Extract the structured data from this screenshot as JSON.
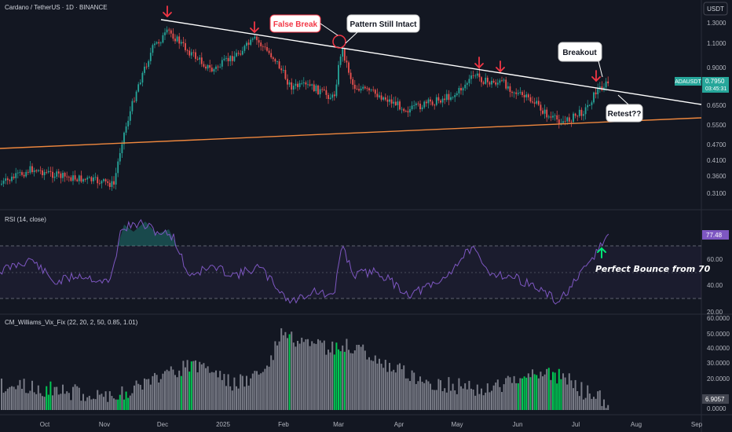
{
  "header": {
    "symbol_title": "Cardano / TetherUS · 1D · BINANCE",
    "currency_button": "USDT"
  },
  "price_pane": {
    "y_ticks": [
      "1.3000",
      "1.1000",
      "0.9000",
      "0.7950",
      "0.6500",
      "0.5500",
      "0.4700",
      "0.4100",
      "0.3600",
      "0.3100"
    ],
    "ticker_label": "ADAUSDT",
    "last_price": "0.7950",
    "countdown": "03:45:31",
    "colors": {
      "up": "#26a69a",
      "down": "#ef5350",
      "resistance": "#ffffff",
      "support": "#f0883e",
      "arrow": "#f23645"
    }
  },
  "annotations": {
    "false_break": "False Break",
    "pattern_intact": "Pattern Still Intact",
    "breakout": "Breakout",
    "retest": "Retest??",
    "bounce_note": "Perfect Bounce from 70"
  },
  "rsi_pane": {
    "title": "RSI (14, close)",
    "value": "77.48",
    "y_ticks": [
      "60.00",
      "40.00",
      "20.00"
    ]
  },
  "vix_pane": {
    "title": "CM_Williams_Vix_Fix (22, 20, 2, 50, 0.85, 1.01)",
    "value": "6.9057",
    "y_ticks": [
      "60.0000",
      "50.0000",
      "40.0000",
      "30.0000",
      "20.0000",
      "10.0000",
      "0.0000"
    ]
  },
  "time_axis": {
    "labels": [
      "Oct",
      "Nov",
      "Dec",
      "2025",
      "Feb",
      "Mar",
      "Apr",
      "May",
      "Jun",
      "Jul",
      "Aug",
      "Sep"
    ]
  }
}
